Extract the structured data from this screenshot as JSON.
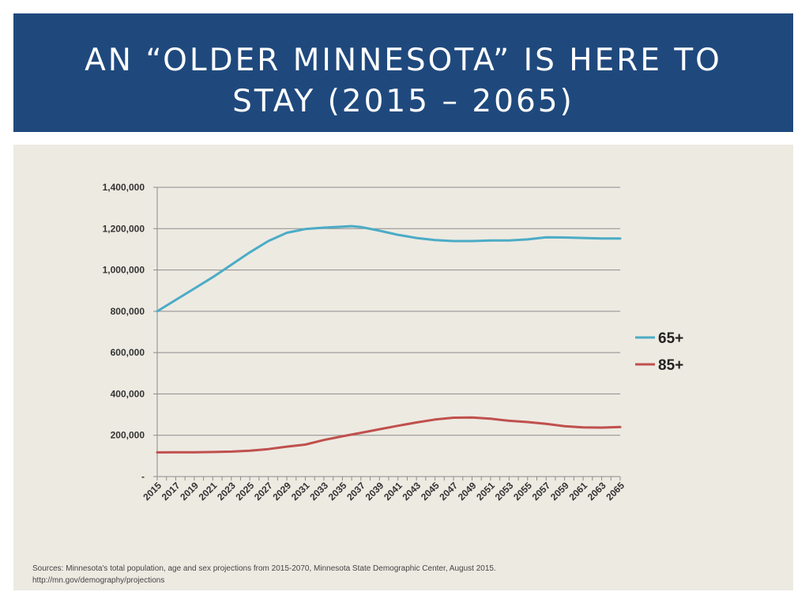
{
  "title": {
    "line1": "AN “OLDER MINNESOTA” IS HERE TO",
    "line2": "STAY (2015 – 2065)"
  },
  "colors": {
    "title_band": "#1f497d",
    "background": "#edeae2",
    "series_65": "#4bacc6",
    "series_85": "#c0504d"
  },
  "chart_data": {
    "type": "line",
    "x_tick_labels": [
      "2015",
      "2017",
      "2019",
      "2021",
      "2023",
      "2025",
      "2027",
      "2029",
      "2031",
      "2033",
      "2035",
      "2037",
      "2039",
      "2041",
      "2043",
      "2045",
      "2047",
      "2049",
      "2051",
      "2053",
      "2055",
      "2057",
      "2059",
      "2061",
      "2063",
      "2065"
    ],
    "y_ticks": [
      0,
      200000,
      400000,
      600000,
      800000,
      1000000,
      1200000,
      1400000
    ],
    "y_tick_labels": [
      "-",
      "200,000",
      "400,000",
      "600,000",
      "800,000",
      "1,000,000",
      "1,200,000",
      "1,400,000"
    ],
    "ylim": [
      0,
      1400000
    ],
    "grid": true,
    "legend_position": "right",
    "series": [
      {
        "name": "65+",
        "x": [
          2015,
          2017,
          2019,
          2021,
          2023,
          2025,
          2027,
          2029,
          2031,
          2033,
          2035,
          2036,
          2037,
          2039,
          2041,
          2043,
          2045,
          2047,
          2049,
          2051,
          2053,
          2055,
          2057,
          2059,
          2061,
          2063,
          2065
        ],
        "values": [
          800000,
          855000,
          910000,
          965000,
          1025000,
          1085000,
          1140000,
          1180000,
          1198000,
          1205000,
          1210000,
          1212000,
          1208000,
          1190000,
          1170000,
          1155000,
          1145000,
          1140000,
          1140000,
          1143000,
          1143000,
          1148000,
          1158000,
          1157000,
          1155000,
          1152000,
          1152000
        ]
      },
      {
        "name": "85+",
        "x": [
          2015,
          2017,
          2019,
          2021,
          2023,
          2025,
          2027,
          2029,
          2031,
          2033,
          2035,
          2037,
          2039,
          2041,
          2043,
          2045,
          2047,
          2049,
          2051,
          2053,
          2055,
          2057,
          2059,
          2061,
          2063,
          2065
        ],
        "values": [
          117000,
          118000,
          118000,
          119000,
          121000,
          125000,
          133000,
          145000,
          155000,
          177000,
          195000,
          212000,
          229000,
          246000,
          262000,
          276000,
          285000,
          286000,
          280000,
          270000,
          264000,
          255000,
          244000,
          238000,
          237000,
          240000
        ]
      }
    ]
  },
  "source": {
    "line1": "Sources: Minnesota's total population, age and sex projections from 2015-2070, Minnesota State Demographic Center, August 2015.",
    "line2": "http://mn.gov/demography/projections"
  }
}
